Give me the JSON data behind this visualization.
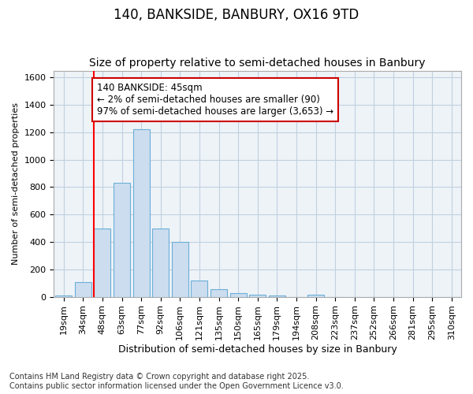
{
  "title": "140, BANKSIDE, BANBURY, OX16 9TD",
  "subtitle": "Size of property relative to semi-detached houses in Banbury",
  "xlabel": "Distribution of semi-detached houses by size in Banbury",
  "ylabel": "Number of semi-detached properties",
  "categories": [
    "19sqm",
    "34sqm",
    "48sqm",
    "63sqm",
    "77sqm",
    "92sqm",
    "106sqm",
    "121sqm",
    "135sqm",
    "150sqm",
    "165sqm",
    "179sqm",
    "194sqm",
    "208sqm",
    "223sqm",
    "237sqm",
    "252sqm",
    "266sqm",
    "281sqm",
    "295sqm",
    "310sqm"
  ],
  "values": [
    10,
    110,
    500,
    830,
    1220,
    500,
    400,
    120,
    55,
    25,
    15,
    10,
    0,
    15,
    0,
    0,
    0,
    0,
    0,
    0,
    0
  ],
  "bar_color": "#ccddf0",
  "bar_edge_color": "#6baed6",
  "red_line_index": 2,
  "annotation_line1": "140 BANKSIDE: 45sqm",
  "annotation_line2": "← 2% of semi-detached houses are smaller (90)",
  "annotation_line3": "97% of semi-detached houses are larger (3,653) →",
  "annotation_box_color": "#ffffff",
  "annotation_box_edge": "#cc0000",
  "ylim": [
    0,
    1650
  ],
  "yticks": [
    0,
    200,
    400,
    600,
    800,
    1000,
    1200,
    1400,
    1600
  ],
  "footnote1": "Contains HM Land Registry data © Crown copyright and database right 2025.",
  "footnote2": "Contains public sector information licensed under the Open Government Licence v3.0.",
  "background_color": "#ffffff",
  "plot_bg_color": "#eef3f8",
  "grid_color": "#c0d0e0",
  "title_fontsize": 12,
  "subtitle_fontsize": 10,
  "xlabel_fontsize": 9,
  "ylabel_fontsize": 8,
  "tick_fontsize": 8,
  "annotation_fontsize": 8.5,
  "footnote_fontsize": 7
}
